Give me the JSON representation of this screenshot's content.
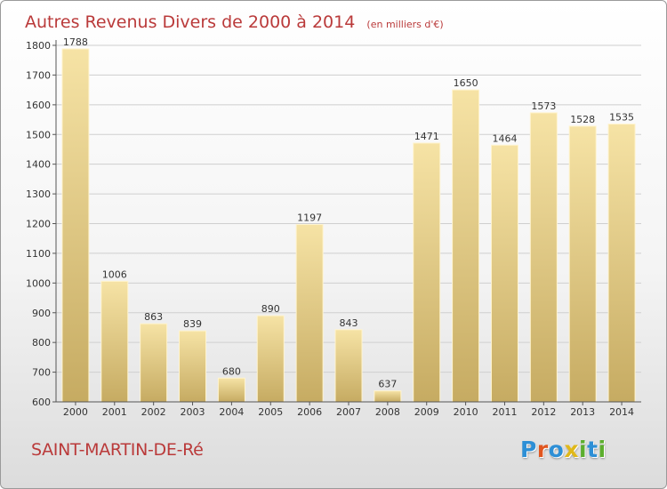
{
  "colors": {
    "title": "#ba3a3a",
    "bar_light": "#f6e3a5",
    "bar_dark": "#c6ab62",
    "grid": "#cfcfcf"
  },
  "chart_data": {
    "type": "bar",
    "title": "Autres Revenus Divers de 2000 à 2014",
    "subtitle": "(en milliers d'€)",
    "categories": [
      "2000",
      "2001",
      "2002",
      "2003",
      "2004",
      "2005",
      "2006",
      "2007",
      "2008",
      "2009",
      "2010",
      "2011",
      "2012",
      "2013",
      "2014"
    ],
    "values": [
      1788,
      1006,
      863,
      839,
      680,
      890,
      1197,
      843,
      637,
      1471,
      1650,
      1464,
      1573,
      1528,
      1535
    ],
    "ylim": [
      600,
      1800
    ],
    "yticks": [
      600,
      700,
      800,
      900,
      1000,
      1100,
      1200,
      1300,
      1400,
      1500,
      1600,
      1700,
      1800
    ],
    "grid": true,
    "legend": "none",
    "data_labels": true
  },
  "footer": {
    "location": "SAINT-MARTIN-DE-Ré",
    "logo_letters": [
      {
        "char": "P",
        "color": "#2d8fd6"
      },
      {
        "char": "r",
        "color": "#e0561f"
      },
      {
        "char": "o",
        "color": "#2d8fd6"
      },
      {
        "char": "x",
        "color": "#e0b81a"
      },
      {
        "char": "i",
        "color": "#5cae2e"
      },
      {
        "char": "t",
        "color": "#2d8fd6"
      },
      {
        "char": "i",
        "color": "#5cae2e"
      }
    ]
  }
}
